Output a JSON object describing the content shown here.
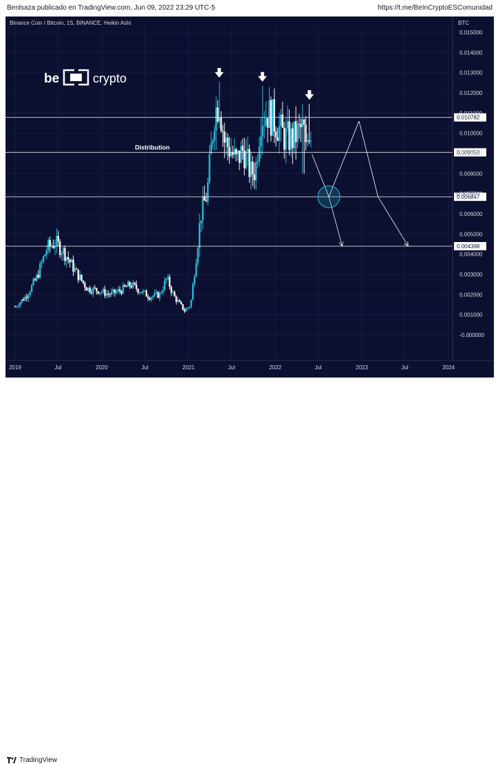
{
  "header": {
    "attribution": "Benlsaza publicado en TradingView.com, Jun 09, 2022 23:29 UTC-5",
    "link": "https://t.me/BeInCryptoESComunidad"
  },
  "footer": {
    "brand": "TradingView"
  },
  "watermark": {
    "brand": "beincrypto"
  },
  "colors": {
    "background": "#0c1030",
    "candle_up": "#2ab8d4",
    "candle_down": "#f2f2f2",
    "level_line": "#ffffff",
    "label_bg": "#ffffff",
    "label_text": "#0c1030"
  },
  "chart_data": {
    "type": "candlestick",
    "title": "Binance Coin / Bitcoin, 1S, BINANCE, Heikin Ashi",
    "currency": "BTC",
    "ylim": [
      -0.0002,
      0.0155
    ],
    "y_ticks": [
      "0.015000",
      "0.014000",
      "0.013000",
      "0.012000",
      "0.011000",
      "0.010000",
      "0.009000",
      "0.008000",
      "0.007000",
      "0.006000",
      "0.005000",
      "0.004000",
      "0.003000",
      "0.002000",
      "0.001000",
      "-0.000000"
    ],
    "x_ticks": [
      "2019",
      "Jul",
      "2020",
      "Jul",
      "2021",
      "Jul",
      "2022",
      "Jul",
      "2023",
      "Jul",
      "2024"
    ],
    "levels": [
      {
        "value": 0.010782,
        "label": "0.010782"
      },
      {
        "value": 0.00905,
        "label": "0.009050"
      },
      {
        "value": 0.006847,
        "label": "0.006847"
      },
      {
        "value": 0.004398,
        "label": "0.004398"
      }
    ],
    "annotations": {
      "distribution_label": "Distribution",
      "faded_label": "0.007000"
    },
    "projection": [
      {
        "date": "2022-06-05",
        "value": 0.00895
      },
      {
        "date": "2022-08-15",
        "value": 0.00685
      },
      {
        "date": "2022-12-20",
        "value": 0.0106
      },
      {
        "date": "2023-03-10",
        "value": 0.00685
      },
      {
        "date": "2023-07-15",
        "value": 0.0044
      }
    ],
    "projection_branch": [
      {
        "date": "2022-08-15",
        "value": 0.00685
      },
      {
        "date": "2022-10-10",
        "value": 0.0044
      }
    ],
    "circle_at": {
      "date": "2022-08-15",
      "value": 0.00685
    },
    "top_markers": [
      {
        "date": "2021-05-10",
        "value": 0.01255
      },
      {
        "date": "2021-11-08",
        "value": 0.01235
      },
      {
        "date": "2022-05-25",
        "value": 0.01145
      }
    ],
    "anchors": [
      {
        "date": "2019-01-01",
        "value": 0.0014
      },
      {
        "date": "2019-02-15",
        "value": 0.0019
      },
      {
        "date": "2019-04-01",
        "value": 0.0028
      },
      {
        "date": "2019-05-15",
        "value": 0.0043
      },
      {
        "date": "2019-06-20",
        "value": 0.0046
      },
      {
        "date": "2019-08-01",
        "value": 0.004
      },
      {
        "date": "2019-09-20",
        "value": 0.003
      },
      {
        "date": "2019-11-01",
        "value": 0.0023
      },
      {
        "date": "2019-12-20",
        "value": 0.0022
      },
      {
        "date": "2020-02-01",
        "value": 0.002
      },
      {
        "date": "2020-03-20",
        "value": 0.0022
      },
      {
        "date": "2020-05-01",
        "value": 0.0025
      },
      {
        "date": "2020-06-10",
        "value": 0.0022
      },
      {
        "date": "2020-07-20",
        "value": 0.0019
      },
      {
        "date": "2020-09-01",
        "value": 0.002
      },
      {
        "date": "2020-10-01",
        "value": 0.0028
      },
      {
        "date": "2020-11-01",
        "value": 0.0019
      },
      {
        "date": "2020-12-15",
        "value": 0.0012
      },
      {
        "date": "2021-01-10",
        "value": 0.0015
      },
      {
        "date": "2021-02-01",
        "value": 0.0038
      },
      {
        "date": "2021-02-22",
        "value": 0.006
      },
      {
        "date": "2021-03-20",
        "value": 0.007
      },
      {
        "date": "2021-04-20",
        "value": 0.011
      },
      {
        "date": "2021-05-10",
        "value": 0.0116
      },
      {
        "date": "2021-06-01",
        "value": 0.0096
      },
      {
        "date": "2021-06-25",
        "value": 0.0092
      },
      {
        "date": "2021-07-20",
        "value": 0.0086
      },
      {
        "date": "2021-08-20",
        "value": 0.0092
      },
      {
        "date": "2021-09-20",
        "value": 0.008
      },
      {
        "date": "2021-10-10",
        "value": 0.0082
      },
      {
        "date": "2021-11-01",
        "value": 0.0108
      },
      {
        "date": "2021-12-01",
        "value": 0.011
      },
      {
        "date": "2022-01-05",
        "value": 0.0105
      },
      {
        "date": "2022-02-10",
        "value": 0.0098
      },
      {
        "date": "2022-03-15",
        "value": 0.0097
      },
      {
        "date": "2022-04-20",
        "value": 0.0102
      },
      {
        "date": "2022-05-20",
        "value": 0.0103
      },
      {
        "date": "2022-06-06",
        "value": 0.0099
      }
    ]
  }
}
